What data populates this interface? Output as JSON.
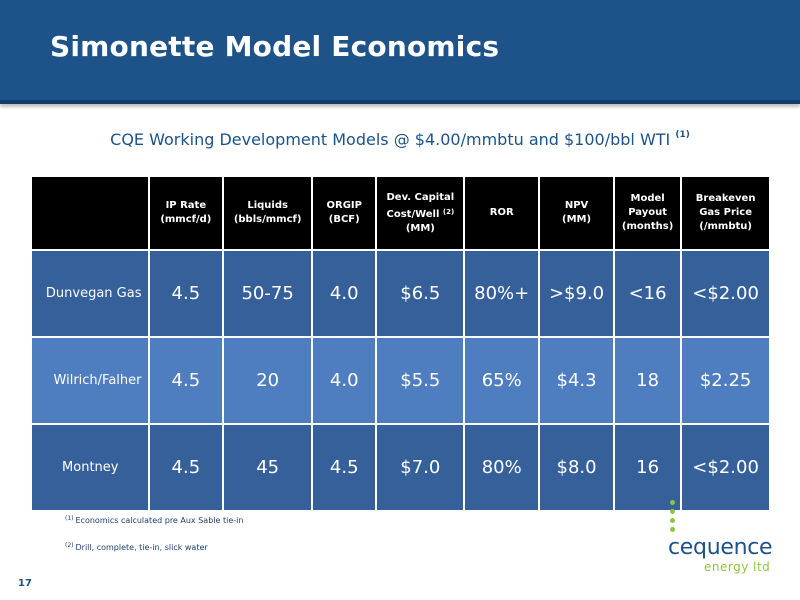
{
  "header": {
    "title": "Simonette Model Economics"
  },
  "subtitle": {
    "text": "CQE Working Development Models @ $4.00/mmbtu and $100/bbl WTI",
    "footnote_ref": "(1)"
  },
  "table": {
    "columns": [
      {
        "lines": [
          "IP Rate",
          "(mmcf/d)"
        ],
        "sup": ""
      },
      {
        "lines": [
          "Liquids",
          "(bbls/mmcf)"
        ],
        "sup": ""
      },
      {
        "lines": [
          "ORGIP",
          "(BCF)"
        ],
        "sup": ""
      },
      {
        "lines": [
          "Dev. Capital",
          "Cost/Well",
          "(MM)"
        ],
        "sup": "(2)"
      },
      {
        "lines": [
          "ROR"
        ],
        "sup": ""
      },
      {
        "lines": [
          "NPV",
          "(MM)"
        ],
        "sup": ""
      },
      {
        "lines": [
          "Model",
          "Payout",
          "(months)"
        ],
        "sup": ""
      },
      {
        "lines": [
          "Breakeven",
          "Gas Price",
          "(/mmbtu)"
        ],
        "sup": ""
      }
    ],
    "rows": [
      {
        "label": "Dunvegan Gas",
        "values": [
          "4.5",
          "50-75",
          "4.0",
          "$6.5",
          "80%+",
          ">$9.0",
          "<16",
          "<$2.00"
        ]
      },
      {
        "label": "Wilrich/Falher",
        "values": [
          "4.5",
          "20",
          "4.0",
          "$5.5",
          "65%",
          "$4.3",
          "18",
          "$2.25"
        ]
      },
      {
        "label": "Montney",
        "values": [
          "4.5",
          "45",
          "4.5",
          "$7.0",
          "80%",
          "$8.0",
          "16",
          "<$2.00"
        ]
      }
    ]
  },
  "footnotes": [
    {
      "mark": "(1)",
      "text": "Economics calculated pre Aux Sable tie-in"
    },
    {
      "mark": "(2)",
      "text": "Drill, complete, tie-in, slick water"
    }
  ],
  "logo": {
    "line1": "cequence",
    "line2": "energy ltd"
  },
  "slide_number": "17",
  "colors": {
    "header": "#1d5389",
    "row_dark": "#36609a",
    "row_light": "#4f7ec0",
    "accent_green": "#8cc63f"
  }
}
